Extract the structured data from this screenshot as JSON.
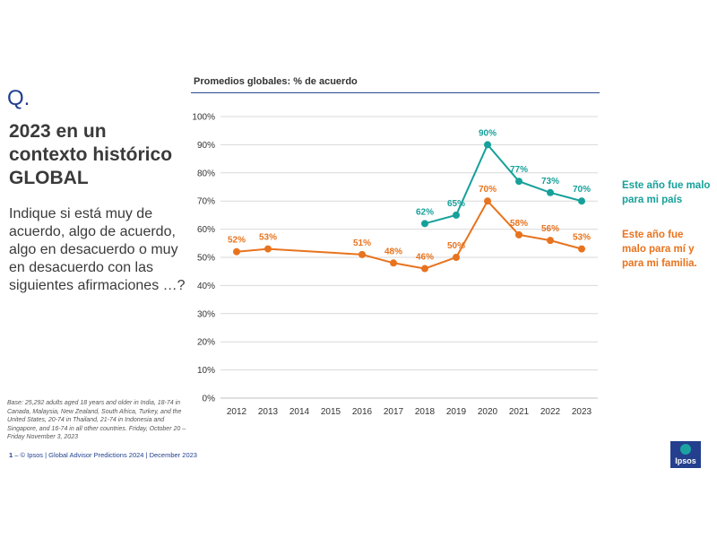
{
  "left": {
    "q_mark": "Q.",
    "title": "2023 en un\ncontexto histórico\nGLOBAL",
    "question": "Indique si está muy de acuerdo, algo de acuerdo, algo en desacuerdo o muy en desacuerdo con las siguientes afirmaciones …?",
    "base_note": "Base: 25,292 adults aged 18 years and older in India, 18-74 in Canada, Malaysia, New Zealand, South Africa, Turkey, and the United States, 20-74 in Thailand, 21-74 in Indonesia and Singapore, and 16-74 in all other countries. Friday, October 20 – Friday November 3, 2023"
  },
  "footer": {
    "page": "1",
    "text": " –  © Ipsos | Global Advisor Predictions 2024 | December 2023"
  },
  "logo_text": "Ipsos",
  "chart_data": {
    "type": "line",
    "title": "Promedios globales: % de acuerdo",
    "xlabel": "",
    "ylabel": "",
    "x": [
      2012,
      2013,
      2014,
      2015,
      2016,
      2017,
      2018,
      2019,
      2020,
      2021,
      2022,
      2023
    ],
    "ylim": [
      0,
      100
    ],
    "yticks": [
      "0%",
      "10%",
      "20%",
      "30%",
      "40%",
      "50%",
      "60%",
      "70%",
      "80%",
      "90%",
      "100%"
    ],
    "grid": true,
    "legend_placement": "right",
    "series": [
      {
        "name": "Este año fue malo para mi país",
        "color": "#17a09a",
        "x": [
          2018,
          2019,
          2020,
          2021,
          2022,
          2023
        ],
        "values": [
          62,
          65,
          90,
          77,
          73,
          70
        ],
        "labels": [
          "62%",
          "65%",
          "90%",
          "77%",
          "73%",
          "70%"
        ]
      },
      {
        "name": "Este año fue malo para mí y para mi familia.",
        "color": "#e8731e",
        "x": [
          2012,
          2013,
          2016,
          2017,
          2018,
          2019,
          2020,
          2021,
          2022,
          2023
        ],
        "values": [
          52,
          53,
          51,
          48,
          46,
          50,
          70,
          58,
          56,
          53
        ],
        "labels": [
          "52%",
          "53%",
          "51%",
          "48%",
          "46%",
          "50%",
          "70%",
          "58%",
          "56%",
          "53%"
        ]
      }
    ]
  }
}
